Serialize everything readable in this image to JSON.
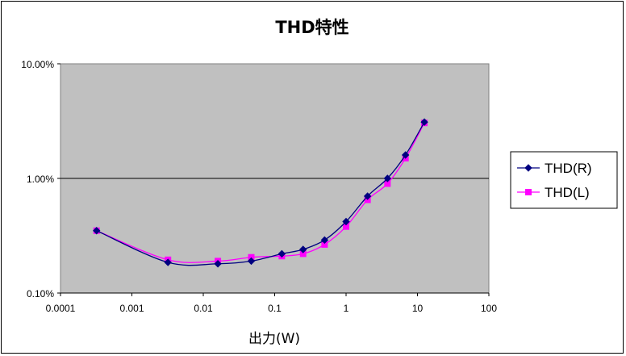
{
  "chart_data": {
    "type": "line",
    "title": "THD特性",
    "xlabel": "出力(W)",
    "ylabel": "",
    "x_scale": "log",
    "y_scale": "log",
    "xlim": [
      0.0001,
      100
    ],
    "ylim": [
      0.1,
      10
    ],
    "x_ticks": [
      "0.0001",
      "0.001",
      "0.01",
      "0.1",
      "1",
      "10",
      "100"
    ],
    "y_ticks": [
      "0.10%",
      "1.00%",
      "10.00%"
    ],
    "gridlines": "major y",
    "legend_position": "right",
    "plot_background": "#c0c0c0",
    "series": [
      {
        "name": "THD(R)",
        "color": "#000080",
        "marker": "diamond",
        "x": [
          0.00032,
          0.0032,
          0.016,
          0.047,
          0.126,
          0.25,
          0.5,
          1.0,
          2.0,
          3.8,
          6.8,
          12.5
        ],
        "y": [
          0.35,
          0.185,
          0.18,
          0.19,
          0.22,
          0.24,
          0.29,
          0.42,
          0.7,
          1.0,
          1.6,
          3.1
        ]
      },
      {
        "name": "THD(L)",
        "color": "#ff00ff",
        "marker": "square",
        "x": [
          0.00032,
          0.0032,
          0.016,
          0.047,
          0.126,
          0.25,
          0.5,
          1.0,
          2.0,
          3.8,
          6.8,
          12.5
        ],
        "y": [
          0.35,
          0.195,
          0.19,
          0.205,
          0.21,
          0.22,
          0.265,
          0.38,
          0.65,
          0.9,
          1.5,
          3.05
        ]
      }
    ]
  }
}
